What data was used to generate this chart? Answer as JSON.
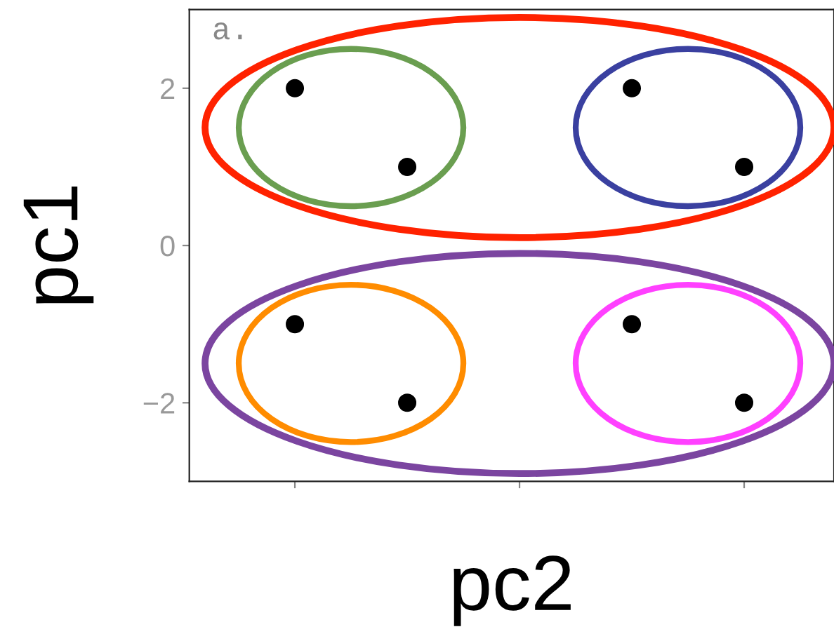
{
  "chart_data": {
    "type": "scatter",
    "xlabel": "pc2",
    "ylabel": "pc1",
    "categories": [
      null,
      null,
      null,
      null,
      null
    ],
    "series": [
      {
        "color": "#000000",
        "values": [
          2,
          1,
          null,
          2,
          1
        ]
      },
      {
        "color": "#000000",
        "values": [
          -1,
          -2,
          null,
          -1,
          -2
        ]
      }
    ],
    "ylim": [
      -3,
      3
    ],
    "yticks": [
      -2,
      0,
      2
    ],
    "grid": false,
    "legend": false,
    "marker": "circle",
    "annotations": [
      "a."
    ]
  }
}
